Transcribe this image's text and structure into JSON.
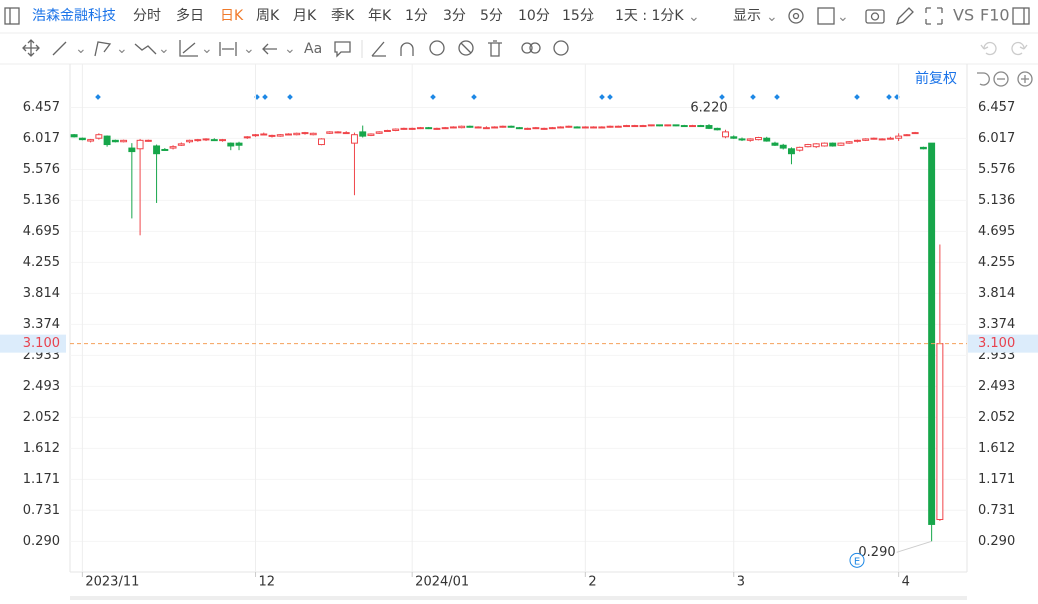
{
  "toolbar": {
    "stock_name": "浩森金融科技",
    "periods": [
      "分时",
      "多日",
      "日K",
      "周K",
      "月K",
      "季K",
      "年K",
      "1分",
      "3分",
      "5分",
      "10分",
      "15分"
    ],
    "active_period_index": 2,
    "interval_selector": "1天 : 1分K",
    "display": "显示",
    "vs": "VS",
    "f10": "F10"
  },
  "drawing_toolbar": {
    "text_tool": "Aa"
  },
  "chart_data": {
    "type": "candlestick",
    "adjustment": "前复权",
    "up_color": "#f0454a",
    "down_color": "#17a64a",
    "grid": true,
    "categories": [
      null,
      "2023/11",
      null,
      null,
      null,
      null,
      null,
      null,
      null,
      null,
      null,
      null,
      null,
      null,
      null,
      null,
      null,
      null,
      null,
      null,
      null,
      null,
      "12",
      null,
      null,
      null,
      null,
      null,
      null,
      null,
      null,
      null,
      null,
      null,
      null,
      null,
      null,
      null,
      null,
      null,
      null,
      "2024/01",
      null,
      null,
      null,
      null,
      null,
      null,
      null,
      null,
      null,
      null,
      null,
      null,
      null,
      null,
      null,
      null,
      null,
      null,
      null,
      null,
      "2",
      null,
      null,
      null,
      null,
      null,
      null,
      null,
      null,
      null,
      null,
      null,
      null,
      null,
      null,
      null,
      null,
      null,
      "3",
      null,
      null,
      null,
      null,
      null,
      null,
      null,
      null,
      null,
      null,
      null,
      null,
      null,
      null,
      null,
      null,
      null,
      null,
      null,
      "4",
      null,
      null,
      null,
      null,
      null
    ],
    "values": [
      [
        6.07,
        6.08,
        6.03,
        6.04
      ],
      [
        6.02,
        6.03,
        5.99,
        6.0
      ],
      [
        5.98,
        6.01,
        5.96,
        6.0
      ],
      [
        6.02,
        6.09,
        6.0,
        6.07
      ],
      [
        6.05,
        6.06,
        5.9,
        5.93
      ],
      [
        5.99,
        6.0,
        5.96,
        5.97
      ],
      [
        5.97,
        6.0,
        5.96,
        5.99
      ],
      [
        5.88,
        5.95,
        4.88,
        5.83
      ],
      [
        5.87,
        6.01,
        4.64,
        5.99
      ],
      [
        5.98,
        6.0,
        5.97,
        5.99
      ],
      [
        5.91,
        5.93,
        5.1,
        5.8
      ],
      [
        5.86,
        5.88,
        5.84,
        5.85
      ],
      [
        5.88,
        5.92,
        5.86,
        5.9
      ],
      [
        5.92,
        5.96,
        5.91,
        5.94
      ],
      [
        5.97,
        6.0,
        5.95,
        5.99
      ],
      [
        5.99,
        6.01,
        5.97,
        6.0
      ],
      [
        6.0,
        6.02,
        5.98,
        6.01
      ],
      [
        6.0,
        6.02,
        5.98,
        5.99
      ],
      [
        5.99,
        6.01,
        5.97,
        6.0
      ],
      [
        5.95,
        5.96,
        5.85,
        5.91
      ],
      [
        5.95,
        5.97,
        5.85,
        5.92
      ],
      [
        6.03,
        6.05,
        6.01,
        6.04
      ],
      [
        6.06,
        6.08,
        6.04,
        6.07
      ],
      [
        6.08,
        6.1,
        6.06,
        6.08
      ],
      [
        6.05,
        6.07,
        6.03,
        6.06
      ],
      [
        6.05,
        6.08,
        6.04,
        6.07
      ],
      [
        6.07,
        6.09,
        6.06,
        6.08
      ],
      [
        6.07,
        6.1,
        6.06,
        6.09
      ],
      [
        6.09,
        6.11,
        6.07,
        6.1
      ],
      [
        6.07,
        6.1,
        6.06,
        6.09
      ],
      [
        5.93,
        6.02,
        5.92,
        6.01
      ],
      [
        6.09,
        6.12,
        6.08,
        6.11
      ],
      [
        6.1,
        6.12,
        6.09,
        6.11
      ],
      [
        6.09,
        6.12,
        6.08,
        6.1
      ],
      [
        5.95,
        6.1,
        5.21,
        6.07
      ],
      [
        6.11,
        6.2,
        6.03,
        6.05
      ],
      [
        6.06,
        6.09,
        6.05,
        6.08
      ],
      [
        6.09,
        6.12,
        6.08,
        6.11
      ],
      [
        6.12,
        6.14,
        6.11,
        6.13
      ],
      [
        6.13,
        6.16,
        6.12,
        6.15
      ],
      [
        6.15,
        6.17,
        6.14,
        6.16
      ],
      [
        6.15,
        6.17,
        6.14,
        6.16
      ],
      [
        6.16,
        6.18,
        6.15,
        6.17
      ],
      [
        6.17,
        6.18,
        6.15,
        6.16
      ],
      [
        6.15,
        6.17,
        6.14,
        6.16
      ],
      [
        6.16,
        6.18,
        6.15,
        6.17
      ],
      [
        6.17,
        6.19,
        6.16,
        6.18
      ],
      [
        6.17,
        6.2,
        6.16,
        6.19
      ],
      [
        6.19,
        6.2,
        6.17,
        6.18
      ],
      [
        6.17,
        6.19,
        6.16,
        6.18
      ],
      [
        6.17,
        6.19,
        6.16,
        6.17
      ],
      [
        6.17,
        6.19,
        6.16,
        6.18
      ],
      [
        6.18,
        6.2,
        6.17,
        6.19
      ],
      [
        6.19,
        6.2,
        6.17,
        6.18
      ],
      [
        6.17,
        6.18,
        6.15,
        6.16
      ],
      [
        6.15,
        6.17,
        6.14,
        6.16
      ],
      [
        6.16,
        6.18,
        6.15,
        6.17
      ],
      [
        6.15,
        6.17,
        6.14,
        6.16
      ],
      [
        6.16,
        6.18,
        6.15,
        6.17
      ],
      [
        6.17,
        6.19,
        6.16,
        6.18
      ],
      [
        6.18,
        6.2,
        6.17,
        6.19
      ],
      [
        6.18,
        6.19,
        6.16,
        6.17
      ],
      [
        6.17,
        6.19,
        6.16,
        6.18
      ],
      [
        6.17,
        6.19,
        6.16,
        6.18
      ],
      [
        6.18,
        6.19,
        6.17,
        6.18
      ],
      [
        6.18,
        6.2,
        6.17,
        6.19
      ],
      [
        6.19,
        6.2,
        6.18,
        6.19
      ],
      [
        6.19,
        6.21,
        6.18,
        6.2
      ],
      [
        6.2,
        6.21,
        6.19,
        6.2
      ],
      [
        6.2,
        6.21,
        6.19,
        6.2
      ],
      [
        6.2,
        6.21,
        6.19,
        6.21
      ],
      [
        6.21,
        6.21,
        6.19,
        6.2
      ],
      [
        6.2,
        6.21,
        6.19,
        6.21
      ],
      [
        6.21,
        6.21,
        6.19,
        6.2
      ],
      [
        6.2,
        6.21,
        6.18,
        6.19
      ],
      [
        6.19,
        6.21,
        6.18,
        6.2
      ],
      [
        6.2,
        6.21,
        6.18,
        6.19
      ],
      [
        6.2,
        6.22,
        6.15,
        6.16
      ],
      [
        6.16,
        6.17,
        6.13,
        6.14
      ],
      [
        6.04,
        6.14,
        6.02,
        6.11
      ],
      [
        6.04,
        6.06,
        6.01,
        6.02
      ],
      [
        6.01,
        6.03,
        5.98,
        6.0
      ],
      [
        5.99,
        6.02,
        5.97,
        6.01
      ],
      [
        6.0,
        6.04,
        5.99,
        6.03
      ],
      [
        6.02,
        6.04,
        5.97,
        5.98
      ],
      [
        5.95,
        5.97,
        5.91,
        5.92
      ],
      [
        5.92,
        5.94,
        5.86,
        5.88
      ],
      [
        5.87,
        5.89,
        5.65,
        5.8
      ],
      [
        5.85,
        5.9,
        5.83,
        5.89
      ],
      [
        5.9,
        5.94,
        5.89,
        5.93
      ],
      [
        5.9,
        5.95,
        5.88,
        5.94
      ],
      [
        5.91,
        5.96,
        5.9,
        5.95
      ],
      [
        5.95,
        5.96,
        5.9,
        5.91
      ],
      [
        5.92,
        5.96,
        5.91,
        5.95
      ],
      [
        5.95,
        5.98,
        5.94,
        5.97
      ],
      [
        5.98,
        6.0,
        5.96,
        5.99
      ],
      [
        5.99,
        6.02,
        5.98,
        6.01
      ],
      [
        6.01,
        6.03,
        6.0,
        6.02
      ],
      [
        6.0,
        6.02,
        5.99,
        6.01
      ],
      [
        6.01,
        6.04,
        6.0,
        6.02
      ],
      [
        6.02,
        6.09,
        5.98,
        6.05
      ],
      [
        6.06,
        6.08,
        6.05,
        6.07
      ],
      [
        6.09,
        6.11,
        6.08,
        6.1
      ],
      [
        5.89,
        5.9,
        5.86,
        5.87
      ],
      [
        5.95,
        5.95,
        0.29,
        0.53
      ],
      [
        0.6,
        4.51,
        0.58,
        3.1
      ]
    ],
    "ylim": [
      -0.146,
      6.677
    ],
    "yticks": [
      {
        "value": 0.29,
        "label": "0.290"
      },
      0.731,
      1.171,
      1.612,
      2.052,
      2.493,
      2.933,
      3.374,
      3.814,
      4.255,
      4.695,
      5.136,
      5.576,
      6.017,
      6.457
    ],
    "current_price": {
      "value": 3.1,
      "label": "3.100"
    },
    "annotations": [
      {
        "label": "6.220",
        "value": 6.22,
        "index": 77
      },
      {
        "label": "0.290",
        "value": 0.29,
        "index": 104
      }
    ],
    "event_label": "E"
  }
}
